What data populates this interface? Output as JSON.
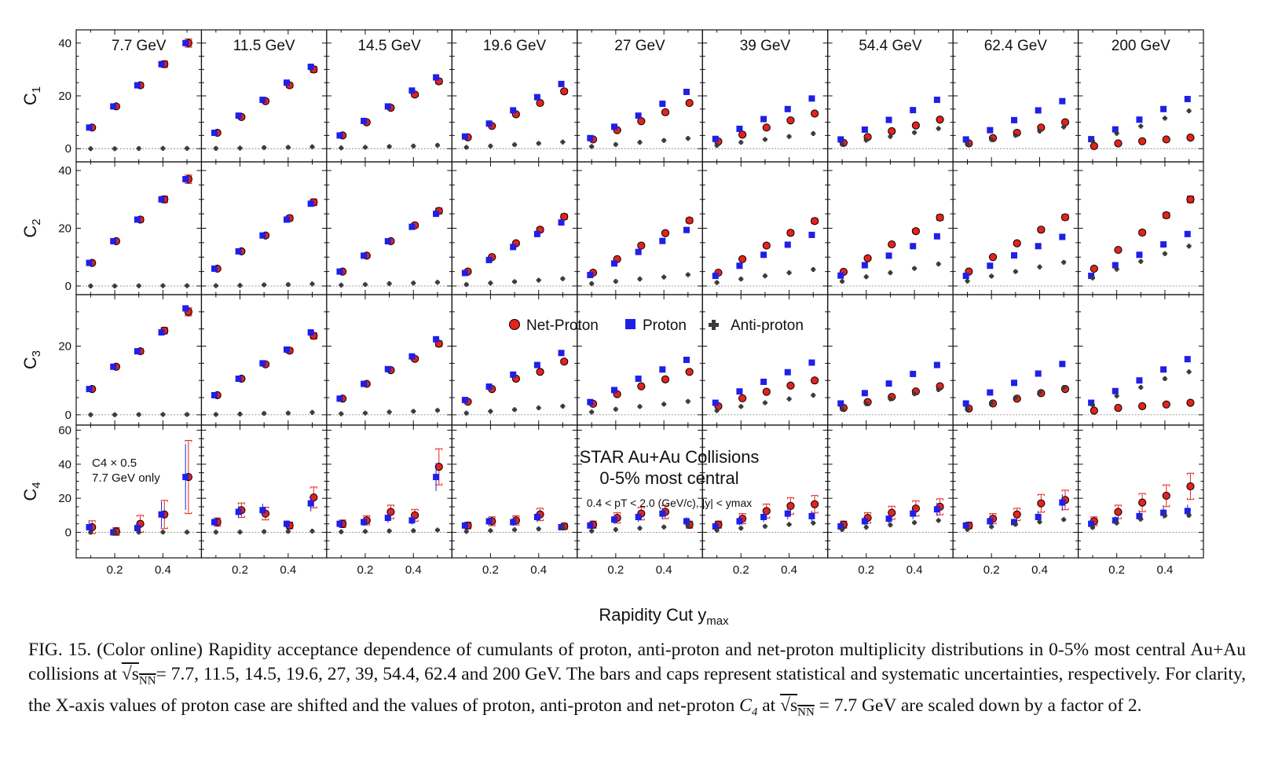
{
  "figure": {
    "row_labels": [
      "C1",
      "C2",
      "C3",
      "C4"
    ],
    "col_labels": [
      "7.7 GeV",
      "11.5 GeV",
      "14.5 GeV",
      "19.6 GeV",
      "27 GeV",
      "39 GeV",
      "54.4 GeV",
      "62.4 GeV",
      "200 GeV"
    ],
    "xlabel": "Rapidity Cut y",
    "xlabel_sub": "max",
    "legend": {
      "net": "Net-Proton",
      "proton": "Proton",
      "anti": "Anti-proton"
    },
    "annotation": {
      "line1": "STAR Au+Au Collisions",
      "line2": "0-5% most central",
      "line3": "0.4 < pT < 2.0 (GeV/c), |y| < ymax"
    },
    "c4_note": {
      "line1": "C4 × 0.5",
      "line2": "7.7 GeV only"
    },
    "colors": {
      "net": "#e3231c",
      "proton": "#1f1fe8",
      "anti": "#3a3a3a"
    }
  },
  "chart_data": {
    "type": "scatter",
    "x": [
      0.1,
      0.2,
      0.3,
      0.4,
      0.5
    ],
    "x_ticks": [
      "0.2",
      "0.4"
    ],
    "xlim": [
      0.04,
      0.56
    ],
    "rows": [
      {
        "name": "C1",
        "ylim": [
          -5,
          45
        ],
        "ticks": [
          0,
          20,
          40
        ]
      },
      {
        "name": "C2",
        "ylim": [
          -3,
          43
        ],
        "ticks": [
          0,
          20,
          40
        ]
      },
      {
        "name": "C3",
        "ylim": [
          -3,
          35
        ],
        "ticks": [
          0,
          20
        ]
      },
      {
        "name": "C4",
        "ylim": [
          -15,
          63
        ],
        "ticks": [
          0,
          20,
          40,
          60
        ]
      }
    ],
    "energies": [
      "7.7",
      "11.5",
      "14.5",
      "19.6",
      "27",
      "39",
      "54.4",
      "62.4",
      "200"
    ],
    "series": [
      {
        "name": "Net-Proton",
        "C1": [
          [
            8,
            16,
            24,
            32,
            40
          ],
          [
            6,
            12,
            18,
            24,
            30
          ],
          [
            5,
            10,
            15.5,
            20.5,
            25.5
          ],
          [
            4.3,
            8.6,
            13,
            17.3,
            21.7
          ],
          [
            3.5,
            7,
            10.4,
            13.8,
            17.3
          ],
          [
            2.7,
            5.3,
            8,
            10.7,
            13.3
          ],
          [
            2.2,
            4.4,
            6.6,
            8.8,
            11
          ],
          [
            2,
            4,
            6,
            8,
            10
          ],
          [
            1,
            2,
            2.8,
            3.5,
            4.2
          ]
        ],
        "C2": [
          [
            8,
            15.5,
            23,
            30,
            37
          ],
          [
            6,
            12,
            17.5,
            23.5,
            29
          ],
          [
            5,
            10.5,
            15.5,
            21,
            26
          ],
          [
            5,
            10,
            14.8,
            19.5,
            24
          ],
          [
            4.6,
            9.3,
            14,
            18.3,
            22.7
          ],
          [
            4.6,
            9.3,
            14,
            18.4,
            22.5
          ],
          [
            4.9,
            9.6,
            14.4,
            19,
            23.7
          ],
          [
            5,
            10,
            14.8,
            19.5,
            23.8
          ],
          [
            6,
            12.5,
            18.5,
            24.5,
            30
          ]
        ],
        "C3": [
          [
            7.5,
            14,
            18.5,
            24.5,
            30
          ],
          [
            5.7,
            10.5,
            14.7,
            18.7,
            23
          ],
          [
            4.7,
            9,
            13,
            16.3,
            20.7
          ],
          [
            3.8,
            7.5,
            10.5,
            12.5,
            15.5
          ],
          [
            3.2,
            6,
            8.3,
            10.3,
            12.5
          ],
          [
            2.5,
            4.8,
            6.7,
            8.5,
            10
          ],
          [
            2,
            3.7,
            5.2,
            6.8,
            8.3
          ],
          [
            1.8,
            3.3,
            4.7,
            6.3,
            7.5
          ],
          [
            1.2,
            2,
            2.5,
            3,
            3.5
          ]
        ],
        "C4": [
          [
            3,
            0.5,
            5,
            10.5,
            32.5
          ],
          [
            6,
            13,
            11,
            4,
            20.5
          ],
          [
            5,
            7,
            12,
            10,
            38.5
          ],
          [
            4,
            6.5,
            7,
            10.5,
            3.5
          ],
          [
            4.5,
            8.5,
            11,
            12,
            4.5
          ],
          [
            4.5,
            8,
            12.5,
            15.5,
            16.5
          ],
          [
            4.5,
            8.5,
            11.5,
            14,
            15
          ],
          [
            4,
            8,
            10.5,
            17,
            19
          ],
          [
            6.5,
            12,
            17.5,
            21.5,
            27
          ]
        ]
      },
      {
        "name": "Proton",
        "C1": [
          [
            8,
            16,
            24,
            32,
            40
          ],
          [
            6,
            12.5,
            18.5,
            25,
            31
          ],
          [
            5,
            10.5,
            16,
            22,
            27
          ],
          [
            4.6,
            9.5,
            14.5,
            19.5,
            24.5
          ],
          [
            4,
            8.3,
            12.5,
            17,
            21.5
          ],
          [
            3.7,
            7.5,
            11.2,
            15,
            19
          ],
          [
            3.5,
            7.2,
            10.9,
            14.6,
            18.5
          ],
          [
            3.5,
            7,
            10.8,
            14.5,
            18
          ],
          [
            3.6,
            7.3,
            11,
            15,
            18.8
          ]
        ],
        "C2": [
          [
            8,
            15.5,
            23,
            30,
            37
          ],
          [
            6,
            12,
            17.5,
            23,
            28.5
          ],
          [
            5,
            10.5,
            15.5,
            20.5,
            25
          ],
          [
            4.5,
            9,
            13.5,
            18,
            22
          ],
          [
            3.8,
            7.8,
            11.8,
            15.6,
            19.4
          ],
          [
            3.5,
            7,
            10.8,
            14.3,
            17.7
          ],
          [
            3.6,
            7.2,
            10.5,
            13.8,
            17.2
          ],
          [
            3.5,
            7,
            10.6,
            13.8,
            17
          ],
          [
            3.5,
            7.2,
            10.8,
            14.4,
            18
          ]
        ],
        "C3": [
          [
            7.5,
            14,
            18.5,
            24,
            31
          ],
          [
            5.7,
            10.5,
            15,
            19,
            24
          ],
          [
            4.7,
            9,
            13.3,
            17,
            22
          ],
          [
            4.3,
            8.2,
            11.7,
            14.5,
            18
          ],
          [
            3.7,
            7.2,
            10.5,
            13.2,
            16
          ],
          [
            3.5,
            6.8,
            9.6,
            12.4,
            15.2
          ],
          [
            3.3,
            6.3,
            9.1,
            11.9,
            14.5
          ],
          [
            3.3,
            6.5,
            9.3,
            12,
            14.8
          ],
          [
            3.5,
            6.9,
            10,
            13.2,
            16.2
          ]
        ],
        "C4": [
          [
            3,
            0,
            2.5,
            10.5,
            32.5
          ],
          [
            6,
            12,
            13,
            5,
            17
          ],
          [
            5,
            6,
            8.5,
            7,
            32.5
          ],
          [
            4,
            6.5,
            6,
            9,
            3
          ],
          [
            4,
            7.5,
            9,
            11,
            6.5
          ],
          [
            3.5,
            6.5,
            9,
            11,
            9.5
          ],
          [
            3.5,
            6.5,
            8,
            11,
            13.5
          ],
          [
            4,
            6.5,
            6,
            9,
            17.5
          ],
          [
            5,
            7,
            9.5,
            11.5,
            12.5
          ]
        ]
      },
      {
        "name": "Anti-proton",
        "C1": [
          [
            0,
            0,
            0.05,
            0.1,
            0.1
          ],
          [
            0.1,
            0.2,
            0.4,
            0.5,
            0.7
          ],
          [
            0.3,
            0.5,
            0.8,
            1,
            1.3
          ],
          [
            0.5,
            1,
            1.5,
            2,
            2.5
          ],
          [
            0.8,
            1.6,
            2.4,
            3.1,
            3.9
          ],
          [
            1.2,
            2.4,
            3.5,
            4.6,
            5.7
          ],
          [
            1.6,
            3.2,
            4.6,
            6.1,
            7.6
          ],
          [
            1.7,
            3.4,
            5,
            6.6,
            8.2
          ],
          [
            2.8,
            5.8,
            8.5,
            11.5,
            14.3
          ]
        ],
        "C2": [
          [
            0,
            0,
            0.05,
            0.1,
            0.1
          ],
          [
            0.1,
            0.2,
            0.4,
            0.5,
            0.7
          ],
          [
            0.3,
            0.5,
            0.8,
            1,
            1.3
          ],
          [
            0.5,
            1,
            1.5,
            2,
            2.5
          ],
          [
            0.8,
            1.6,
            2.4,
            3.1,
            3.9
          ],
          [
            1.2,
            2.4,
            3.5,
            4.6,
            5.7
          ],
          [
            1.6,
            3.2,
            4.6,
            6.1,
            7.6
          ],
          [
            1.7,
            3.4,
            5,
            6.6,
            8.2
          ],
          [
            2.8,
            5.8,
            8.5,
            11.2,
            13.8
          ]
        ],
        "C3": [
          [
            0,
            0,
            0.05,
            0.1,
            0.1
          ],
          [
            0.1,
            0.2,
            0.4,
            0.5,
            0.7
          ],
          [
            0.3,
            0.5,
            0.8,
            1,
            1.3
          ],
          [
            0.5,
            1,
            1.5,
            2,
            2.5
          ],
          [
            0.8,
            1.6,
            2.4,
            3.1,
            3.9
          ],
          [
            1.2,
            2.4,
            3.5,
            4.6,
            5.7
          ],
          [
            1.6,
            3.2,
            4.6,
            6.1,
            7.3
          ],
          [
            1.7,
            3.4,
            5,
            6.6,
            8
          ],
          [
            2.8,
            5.5,
            8,
            10.5,
            12.5
          ]
        ],
        "C4": [
          [
            0,
            0,
            0.05,
            0.1,
            0.1
          ],
          [
            0.1,
            0.2,
            0.4,
            0.5,
            0.7
          ],
          [
            0.3,
            0.5,
            0.8,
            1,
            1.3
          ],
          [
            0.5,
            1,
            1.5,
            2,
            2.5
          ],
          [
            0.8,
            1.6,
            2.4,
            3.1,
            3.9
          ],
          [
            1.2,
            2.4,
            3.5,
            4.6,
            5.5
          ],
          [
            1.6,
            3,
            4.3,
            5.7,
            7
          ],
          [
            1.7,
            3.3,
            4.7,
            6.1,
            7.5
          ],
          [
            2.8,
            5.5,
            7.8,
            9.8,
            10
          ]
        ]
      }
    ]
  },
  "caption": {
    "label": "FIG. 15.",
    "line1": "(Color online) Rapidity acceptance dependence of cumulants of proton, anti-proton and net-proton multiplicity",
    "line2a": "distributions in 0-5% most central Au+Au collisions at ",
    "sqrt_s": "√s",
    "sqrt_sub": "NN",
    "line2b": "= 7.7, 11.5, 14.5, 19.6, 27, 39, 54.4, 62.4 and 200 GeV. The bars",
    "line3": "and caps represent statistical and systematic uncertainties, respectively. For clarity, the X-axis values of proton case are shifted",
    "line4a": "and the values of proton, anti-proton and net-proton ",
    "c4": "C",
    "c4_sub": "4",
    "line4b": " at ",
    "line4c": " = 7.7 GeV are scaled down by a factor of 2."
  }
}
